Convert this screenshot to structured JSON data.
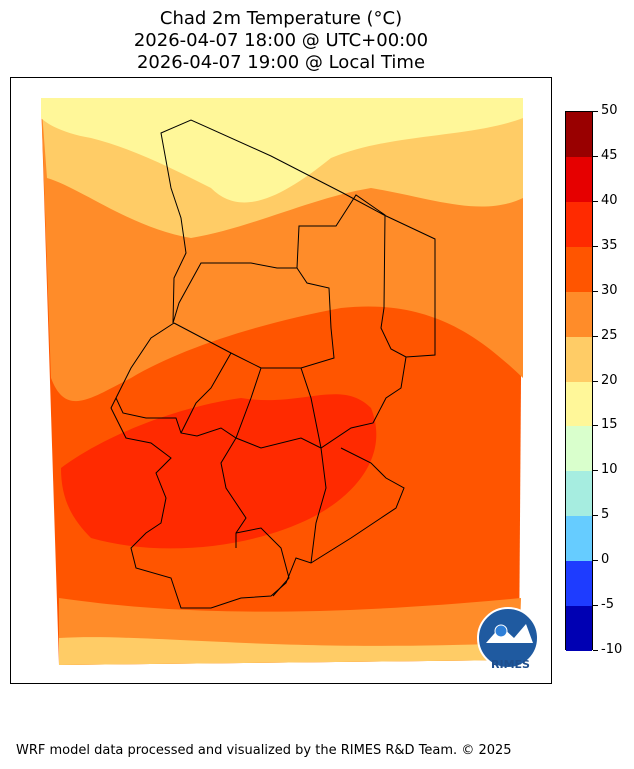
{
  "title": {
    "line1": "Chad 2m Temperature (°C)",
    "line2": "2026-04-07 18:00 @ UTC+00:00",
    "line3": "2026-04-07 19:00 @ Local Time"
  },
  "colorbar": {
    "ticks": [
      "50",
      "45",
      "40",
      "35",
      "30",
      "25",
      "20",
      "15",
      "10",
      "5",
      "0",
      "-5",
      "-10"
    ],
    "colors": [
      "#990000",
      "#e60000",
      "#ff2a00",
      "#ff5500",
      "#ff8c29",
      "#ffcc66",
      "#fff799",
      "#d9ffcc",
      "#a6ede0",
      "#66ccff",
      "#1e3cff",
      "#0000b3"
    ]
  },
  "logo": {
    "text": "RIMES"
  },
  "footer": "WRF model data processed and visualized by the RIMES R&D Team. © 2025",
  "icons": [
    "rimes-logo-icon"
  ]
}
